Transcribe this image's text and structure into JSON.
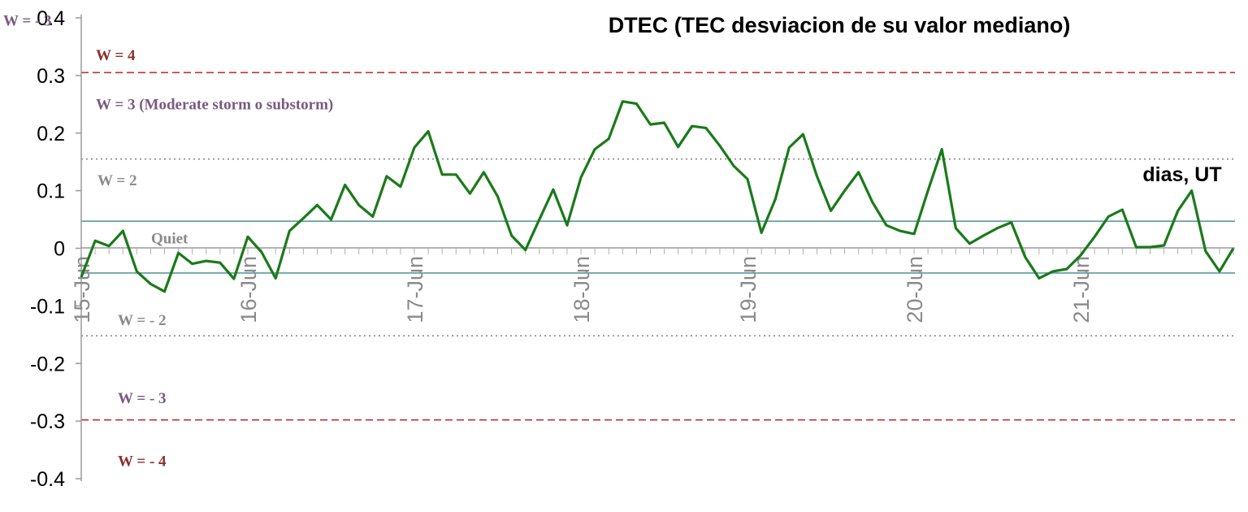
{
  "chart_data": {
    "type": "line",
    "title": "DTEC (TEC desviacion de su valor mediano)",
    "xlabel": "dias, UT",
    "ylabel": "",
    "ylim": [
      -0.4,
      0.4
    ],
    "yticks": [
      "-0.4",
      "-0.3",
      "-0.2",
      "-0.1",
      "0",
      "0.1",
      "0.2",
      "0.3",
      "0.4"
    ],
    "xlim": [
      0,
      80
    ],
    "x_tick_labels": [
      "15-Jun",
      "16-Jun",
      "17-Jun",
      "18-Jun",
      "19-Jun",
      "20-Jun",
      "21-Jun"
    ],
    "x_tick_days": [
      0,
      12,
      24,
      36,
      48,
      60,
      72
    ],
    "samples_per_day": 12,
    "grid": false,
    "series": [
      {
        "color": "#1a7a1a",
        "values": [
          -0.05,
          0.013,
          0.004,
          0.03,
          -0.04,
          -0.062,
          -0.075,
          -0.008,
          -0.027,
          -0.022,
          -0.025,
          -0.053,
          0.02,
          -0.007,
          -0.052,
          0.03,
          0.052,
          0.075,
          0.05,
          0.11,
          0.075,
          0.055,
          0.125,
          0.107,
          0.175,
          0.203,
          0.128,
          0.128,
          0.095,
          0.132,
          0.09,
          0.022,
          -0.003,
          0.05,
          0.102,
          0.04,
          0.123,
          0.172,
          0.19,
          0.255,
          0.251,
          0.215,
          0.218,
          0.176,
          0.212,
          0.209,
          0.178,
          0.143,
          0.12,
          0.027,
          0.085,
          0.175,
          0.198,
          0.125,
          0.065,
          0.1,
          0.132,
          0.08,
          0.04,
          0.03,
          0.025,
          0.1,
          0.172,
          0.035,
          0.008,
          0.022,
          0.035,
          0.045,
          -0.015,
          -0.052,
          -0.04,
          -0.036,
          -0.012,
          0.02,
          0.055,
          0.067,
          0.002,
          0.002,
          0.005,
          0.065,
          0.1,
          -0.005,
          -0.04,
          0.0
        ]
      }
    ],
    "reference_lines": [
      {
        "y": 0.305,
        "style": "dashed",
        "color": "#c03030"
      },
      {
        "y": 0.155,
        "style": "dotted",
        "color": "#8a8a8a"
      },
      {
        "y": 0.047,
        "style": "solid",
        "color": "#5a9aa0"
      },
      {
        "y": -0.043,
        "style": "solid",
        "color": "#5a9aa0"
      },
      {
        "y": -0.152,
        "style": "dotted",
        "color": "#8a8a8a"
      },
      {
        "y": -0.298,
        "style": "dashed",
        "color": "#c03030"
      }
    ],
    "annotations": [
      {
        "text": "W = - 3",
        "color": "#7a5a80",
        "y": 0.395
      },
      {
        "text": "W = 4",
        "color": "#8a3030",
        "y": 0.335
      },
      {
        "text": "W = 3 (Moderate storm o substorm)",
        "color": "#7a5a80",
        "y": 0.25
      },
      {
        "text": "W = 2",
        "color": "#8a8a8a",
        "y": 0.118
      },
      {
        "text": "Quiet",
        "color": "#8a8a8a",
        "y": 0.017
      },
      {
        "text": "W = - 2",
        "color": "#8a8a8a",
        "y": -0.125
      },
      {
        "text": "W = - 3",
        "color": "#7a5a80",
        "y": -0.26
      },
      {
        "text": "W = - 4",
        "color": "#8a3030",
        "y": -0.37
      }
    ]
  }
}
